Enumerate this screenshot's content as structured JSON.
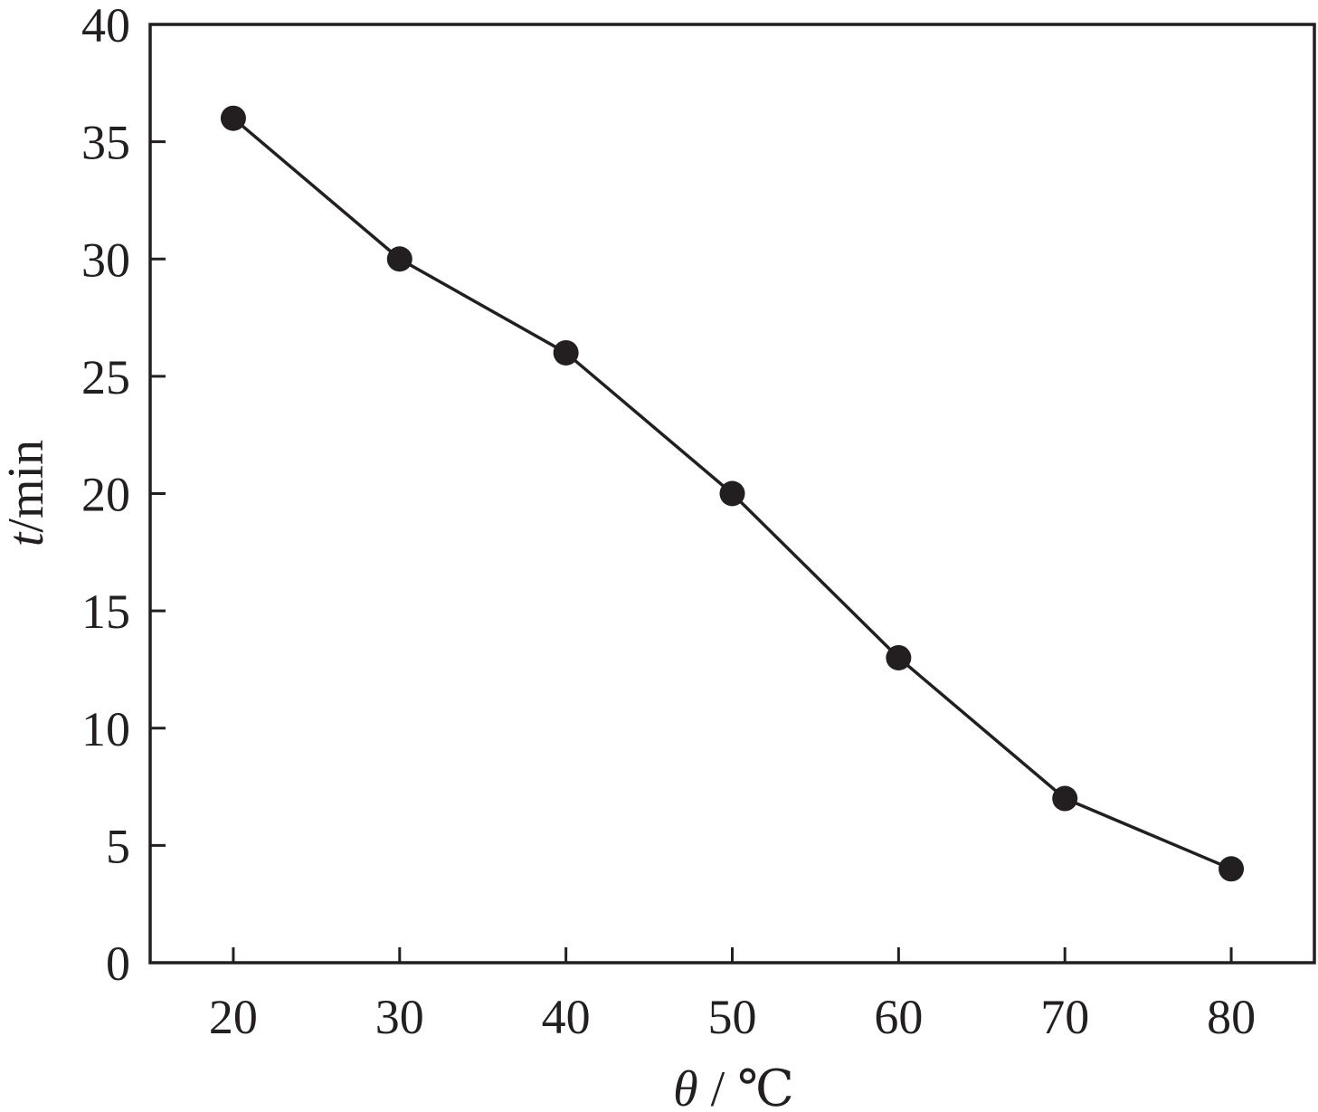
{
  "chart_data": {
    "type": "line",
    "xlabel": {
      "variable": "θ",
      "unit": " / ℃"
    },
    "ylabel": {
      "variable": "t",
      "unit": "/min"
    },
    "xlim": [
      15,
      85
    ],
    "ylim": [
      0,
      40
    ],
    "x_ticks": [
      20,
      30,
      40,
      50,
      60,
      70,
      80
    ],
    "y_ticks": [
      0,
      5,
      10,
      15,
      20,
      25,
      30,
      35,
      40
    ],
    "grid": false,
    "legend": "none",
    "series": [
      {
        "x": [
          20,
          30,
          40,
          50,
          60,
          70,
          80
        ],
        "values": [
          36,
          30,
          26,
          20,
          13,
          7,
          4
        ],
        "color": "#231f20",
        "marker": "filled-circle"
      }
    ]
  }
}
